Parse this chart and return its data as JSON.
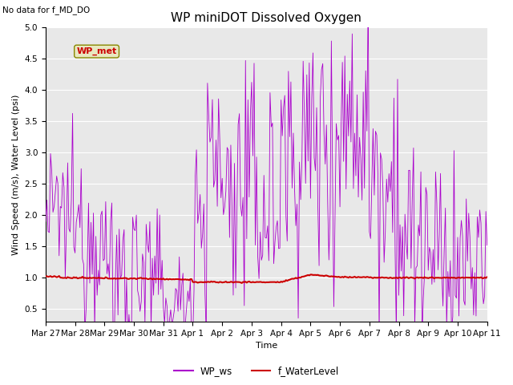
{
  "title": "WP miniDOT Dissolved Oxygen",
  "top_left_text": "No data for f_MD_DO",
  "ylabel": "Wind Speed (m/s), Water Level (psi)",
  "xlabel": "Time",
  "xtick_labels": [
    "Mar 27",
    "Mar 28",
    "Mar 29",
    "Mar 30",
    "Mar 31",
    "Apr 1",
    "Apr 2",
    "Apr 3",
    "Apr 4",
    "Apr 5",
    "Apr 6",
    "Apr 7",
    "Apr 8",
    "Apr 9",
    "Apr 10",
    "Apr 11"
  ],
  "ylim": [
    0.3,
    5.0
  ],
  "yticks": [
    0.5,
    1.0,
    1.5,
    2.0,
    2.5,
    3.0,
    3.5,
    4.0,
    4.5,
    5.0
  ],
  "legend_labels": [
    "WP_ws",
    "f_WaterLevel"
  ],
  "wp_ws_color": "#aa00cc",
  "f_water_level_color": "#cc0000",
  "inset_label": "WP_met",
  "inset_label_color": "#cc0000",
  "plot_bg_color": "#e8e8e8",
  "title_fontsize": 11,
  "axis_fontsize": 8,
  "tick_fontsize": 7.5,
  "seed": 12345
}
